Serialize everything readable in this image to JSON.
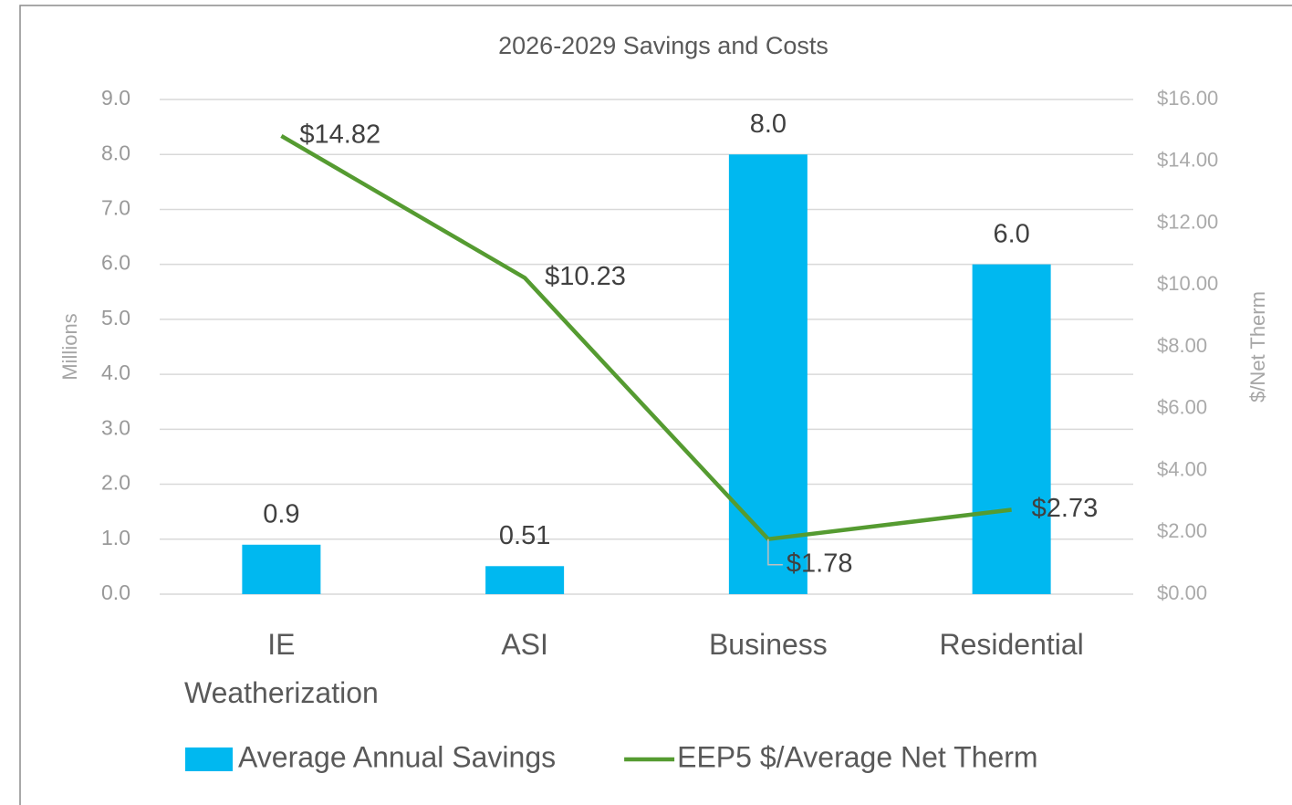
{
  "chart_data": {
    "type": "combo",
    "title": "2026-2029 Savings and Costs",
    "y_label": "Millions",
    "y2_label": "$/Net Therm",
    "categories": [
      "IE Weatherization",
      "ASI",
      "Business",
      "Residential"
    ],
    "series": [
      {
        "name": "Average Annual Savings",
        "type": "bar",
        "color": "#00b8f0",
        "values": [
          0.9,
          0.51,
          8.0,
          6.0
        ],
        "value_labels": [
          "0.9",
          "0.51",
          "8.0",
          "6.0"
        ]
      },
      {
        "name": "EEP5 $/Average Net Therm",
        "type": "line",
        "axis": "y2",
        "color": "#559b31",
        "values": [
          14.82,
          10.23,
          1.78,
          2.73
        ],
        "value_labels": [
          "$14.82",
          "$10.23",
          "$1.78",
          "$2.73"
        ]
      }
    ],
    "ylim": [
      0,
      9
    ],
    "yticks": [
      {
        "value": 0,
        "label": "0.0"
      },
      {
        "value": 1,
        "label": "1.0"
      },
      {
        "value": 2,
        "label": "2.0"
      },
      {
        "value": 3,
        "label": "3.0"
      },
      {
        "value": 4,
        "label": "4.0"
      },
      {
        "value": 5,
        "label": "5.0"
      },
      {
        "value": 6,
        "label": "6.0"
      },
      {
        "value": 7,
        "label": "7.0"
      },
      {
        "value": 8,
        "label": "8.0"
      },
      {
        "value": 9,
        "label": "9.0"
      }
    ],
    "y2lim": [
      0,
      16
    ],
    "y2ticks": [
      {
        "value": 0,
        "label": "$0.00"
      },
      {
        "value": 2,
        "label": "$2.00"
      },
      {
        "value": 4,
        "label": "$4.00"
      },
      {
        "value": 6,
        "label": "$6.00"
      },
      {
        "value": 8,
        "label": "$8.00"
      },
      {
        "value": 10,
        "label": "$10.00"
      },
      {
        "value": 12,
        "label": "$12.00"
      },
      {
        "value": 14,
        "label": "$14.00"
      },
      {
        "value": 16,
        "label": "$16.00"
      }
    ],
    "grid": true,
    "legend": "bottom"
  }
}
